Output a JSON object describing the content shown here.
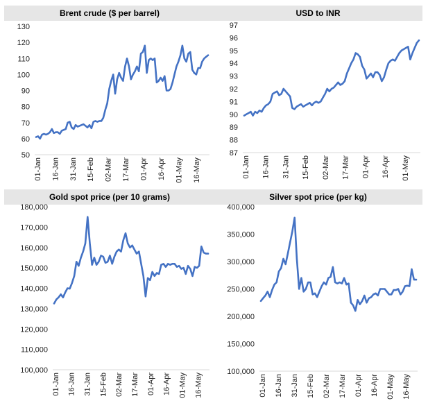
{
  "chart_data": [
    {
      "type": "line",
      "title": "Brent crude ($ per barrel)",
      "xlabel": "",
      "ylabel": "",
      "ylim": [
        50,
        130
      ],
      "yticks": [
        "130",
        "120",
        "110",
        "100",
        "90",
        "80",
        "70",
        "60",
        "50"
      ],
      "x_ticklabels": [
        "01-Jan",
        "16-Jan",
        "31-Jan",
        "15-Feb",
        "02-Mar",
        "17-Mar",
        "01-Apr",
        "16-Apr",
        "01-May",
        "16-May"
      ],
      "grid": false,
      "color": "#4472c4",
      "series": [
        {
          "values": [
            61,
            61.5,
            60,
            62.5,
            63,
            62.5,
            63,
            64,
            66,
            63.5,
            64,
            64,
            63,
            65,
            65.5,
            66,
            70,
            70.5,
            67,
            66,
            68.5,
            67.5,
            68,
            68.5,
            69,
            68,
            67,
            68.5,
            66.5,
            70.5,
            71,
            70.5,
            71,
            71,
            73,
            78,
            82,
            91,
            96,
            100,
            88,
            97,
            101,
            98,
            96,
            105,
            110,
            105,
            97,
            100,
            102,
            105,
            102,
            113,
            114,
            118,
            101,
            109,
            110,
            109,
            110,
            95,
            96,
            98,
            96,
            99,
            90,
            90,
            91,
            95,
            100,
            105,
            108,
            112,
            118,
            110,
            108,
            113,
            114,
            103,
            101,
            100,
            104,
            104,
            108,
            110,
            111,
            112
          ]
        }
      ]
    },
    {
      "type": "line",
      "title": "USD to INR",
      "xlabel": "",
      "ylabel": "",
      "ylim": [
        87,
        97
      ],
      "yticks": [
        "97",
        "96",
        "95",
        "94",
        "93",
        "92",
        "91",
        "90",
        "89",
        "88",
        "87"
      ],
      "x_ticklabels": [
        "01-Jan",
        "16-Jan",
        "31-Jan",
        "15-Feb",
        "02-Mar",
        "17-Mar",
        "01-Apr",
        "16-Apr",
        "01-May"
      ],
      "grid": false,
      "color": "#4472c4",
      "series": [
        {
          "values": [
            89.9,
            90,
            90.1,
            90.2,
            89.9,
            90.2,
            90.1,
            90.3,
            90.2,
            90.5,
            90.7,
            90.8,
            91,
            91.6,
            91.7,
            91.8,
            91.5,
            91.6,
            92,
            91.8,
            91.6,
            91.4,
            90.5,
            90.4,
            90.6,
            90.7,
            90.8,
            90.6,
            90.7,
            90.8,
            90.9,
            90.7,
            90.9,
            91,
            90.9,
            91,
            91.3,
            91.6,
            92,
            91.8,
            92,
            92.1,
            92.3,
            92.5,
            92.3,
            92.4,
            92.6,
            93.2,
            93.6,
            94,
            94.3,
            94.8,
            94.7,
            94.5,
            93.8,
            93.5,
            92.8,
            93,
            93.2,
            92.9,
            93.3,
            93.3,
            93.1,
            92.6,
            92.9,
            93.5,
            94,
            94.2,
            94.3,
            94.2,
            94.5,
            94.8,
            95,
            95.1,
            95.2,
            95.3,
            94.3,
            94.8,
            95.2,
            95.6,
            95.8
          ]
        }
      ]
    },
    {
      "type": "line",
      "title": "Gold spot price (per 10 grams)",
      "xlabel": "",
      "ylabel": "",
      "ylim": [
        100000,
        180000
      ],
      "yticks": [
        "180,000",
        "170,000",
        "160,000",
        "150,000",
        "140,000",
        "130,000",
        "120,000",
        "110,000",
        "100,000"
      ],
      "x_ticklabels": [
        "01-Jan",
        "16-Jan",
        "31-Jan",
        "15-Feb",
        "02-Mar",
        "17-Mar",
        "01-Apr",
        "16-Apr",
        "01-May",
        "16-May"
      ],
      "grid": false,
      "color": "#4472c4",
      "series": [
        {
          "values": [
            132500,
            134500,
            135500,
            137000,
            135500,
            138000,
            140000,
            139800,
            142500,
            146000,
            153000,
            151000,
            155000,
            158000,
            162000,
            175000,
            162000,
            151500,
            155000,
            151500,
            153000,
            156000,
            155500,
            152500,
            153000,
            156000,
            152000,
            155500,
            158000,
            159000,
            158000,
            163500,
            167000,
            162000,
            160000,
            161000,
            159000,
            157000,
            158000,
            152000,
            146000,
            136000,
            145000,
            144000,
            148000,
            146000,
            147500,
            147000,
            151500,
            152000,
            150500,
            152000,
            151500,
            152000,
            152000,
            150500,
            151000,
            149500,
            150000,
            147000,
            151000,
            149500,
            146000,
            150500,
            150000,
            151000,
            160500,
            157500,
            157000,
            157000
          ]
        }
      ]
    },
    {
      "type": "line",
      "title": "Silver spot price (per kg)",
      "xlabel": "",
      "ylabel": "",
      "ylim": [
        100000,
        400000
      ],
      "yticks": [
        "400,000",
        "350,000",
        "300,000",
        "250,000",
        "200,000",
        "150,000",
        "100,000"
      ],
      "x_ticklabels": [
        "01-Jan",
        "16-Jan",
        "31-Jan",
        "15-Feb",
        "02-Mar",
        "17-Mar",
        "01-Apr",
        "16-Apr",
        "01-May",
        "16-May"
      ],
      "grid": false,
      "color": "#4472c4",
      "series": [
        {
          "values": [
            228000,
            233000,
            238000,
            245000,
            235000,
            248000,
            258000,
            262000,
            282000,
            288000,
            305000,
            295000,
            315000,
            335000,
            355000,
            380000,
            305000,
            250000,
            270000,
            245000,
            250000,
            262000,
            262000,
            240000,
            242000,
            235000,
            245000,
            255000,
            262000,
            258000,
            270000,
            272000,
            290000,
            262000,
            260000,
            262000,
            260000,
            270000,
            258000,
            260000,
            225000,
            220000,
            210000,
            230000,
            222000,
            228000,
            238000,
            225000,
            233000,
            235000,
            240000,
            242000,
            238000,
            250000,
            250000,
            250000,
            245000,
            240000,
            240000,
            248000,
            248000,
            250000,
            240000,
            245000,
            255000,
            256000,
            255000,
            286000,
            267000,
            267000
          ]
        }
      ]
    }
  ]
}
